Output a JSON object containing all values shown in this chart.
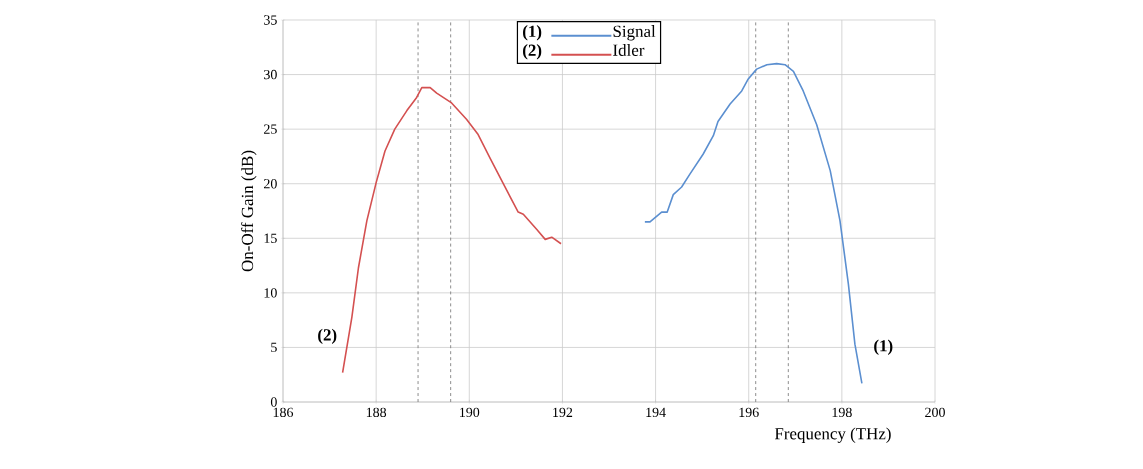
{
  "chart_data": {
    "type": "line",
    "xlabel": "Frequency  (THz)",
    "ylabel": "On-Off Gain  (dB)",
    "xlim": [
      186,
      200
    ],
    "xticks": [
      186,
      188,
      190,
      192,
      194,
      196,
      198,
      200
    ],
    "ylim": [
      0,
      35
    ],
    "yticks": [
      0,
      5,
      10,
      15,
      20,
      25,
      30,
      35
    ],
    "grid": true,
    "legend": "top",
    "series": [
      {
        "name": "Signal",
        "color": "#5b8fd0",
        "x": [
          193.77,
          193.88,
          194.13,
          194.25,
          194.38,
          194.56,
          194.74,
          195.02,
          195.24,
          195.34,
          195.6,
          195.85,
          195.99,
          196.17,
          196.39,
          196.6,
          196.78,
          196.96,
          197.17,
          197.46,
          197.75,
          197.96,
          198.14,
          198.28,
          198.43
        ],
        "values": [
          16.5,
          16.5,
          17.4,
          17.4,
          19.0,
          19.7,
          20.9,
          22.7,
          24.4,
          25.7,
          27.3,
          28.5,
          29.6,
          30.5,
          30.9,
          31.0,
          30.9,
          30.3,
          28.5,
          25.4,
          21.2,
          16.6,
          10.8,
          5.3,
          1.7
        ]
      },
      {
        "name": "Idler",
        "color": "#d45050",
        "x": [
          187.28,
          187.48,
          187.62,
          187.8,
          188.0,
          188.19,
          188.4,
          188.66,
          188.87,
          188.98,
          189.16,
          189.3,
          189.62,
          189.94,
          190.19,
          190.44,
          190.73,
          191.05,
          191.16,
          191.45,
          191.63,
          191.77,
          191.97
        ],
        "values": [
          2.7,
          7.8,
          12.3,
          16.6,
          20.1,
          23.0,
          25.0,
          26.7,
          27.9,
          28.8,
          28.8,
          28.3,
          27.4,
          25.9,
          24.5,
          22.4,
          20.0,
          17.4,
          17.2,
          15.8,
          14.9,
          15.1,
          14.5
        ]
      }
    ],
    "ref_lines": [
      {
        "axis": "x",
        "value": 188.9,
        "color": "#808080",
        "line_style": "dashed"
      },
      {
        "axis": "x",
        "value": 189.6,
        "color": "#808080",
        "line_style": "dashed"
      },
      {
        "axis": "x",
        "value": 196.15,
        "color": "#808080",
        "line_style": "dashed"
      },
      {
        "axis": "x",
        "value": 196.85,
        "color": "#808080",
        "line_style": "dashed"
      }
    ],
    "annotations": [
      {
        "text": "(2)",
        "x": 187.28,
        "y": 2.7
      },
      {
        "text": "(1)",
        "x": 198.43,
        "y": 1.7
      },
      "(1)",
      "(2)"
    ]
  }
}
